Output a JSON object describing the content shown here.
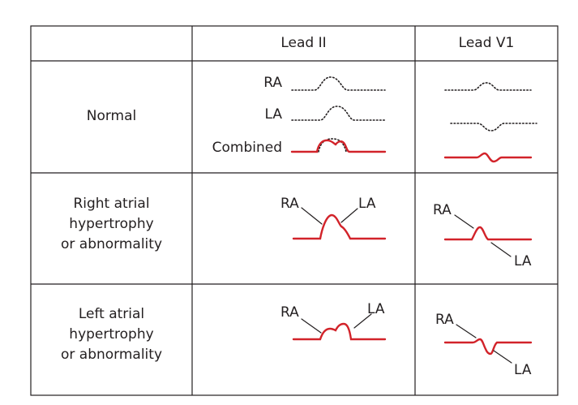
{
  "header": {
    "col_lead2": "Lead II",
    "col_leadv1": "Lead V1"
  },
  "rows": {
    "normal": {
      "label": "Normal",
      "lead2_labels": {
        "ra": "RA",
        "la": "LA",
        "combined": "Combined"
      }
    },
    "right_atrial": {
      "label_lines": [
        "Right atrial",
        "hypertrophy",
        "or abnormality"
      ],
      "lead2_labels": {
        "ra": "RA",
        "la": "LA"
      },
      "v1_labels": {
        "ra": "RA",
        "la": "LA"
      }
    },
    "left_atrial": {
      "label_lines": [
        "Left atrial",
        "hypertrophy",
        "or abnormality"
      ],
      "lead2_labels": {
        "ra": "RA",
        "la": "LA"
      },
      "v1_labels": {
        "ra": "RA",
        "la": "LA"
      }
    }
  },
  "colors": {
    "waveform": "#d2232a",
    "dotted": "#231f20",
    "grid": "#231f20"
  }
}
